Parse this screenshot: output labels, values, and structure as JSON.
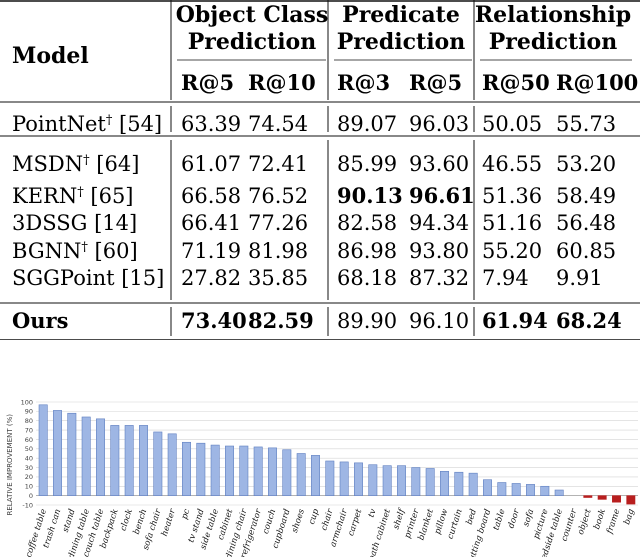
{
  "table": {
    "model_header": "Model",
    "groups": [
      {
        "lines": [
          "Object Class",
          "Prediction"
        ]
      },
      {
        "lines": [
          "Predicate",
          "Prediction"
        ]
      },
      {
        "lines": [
          "Relationship",
          "Prediction"
        ]
      }
    ],
    "metrics": [
      "R@5",
      "R@10",
      "R@3",
      "R@5",
      "R@50",
      "R@100"
    ],
    "rows": [
      {
        "model": "PointNet",
        "dagger": true,
        "ref": "[54]",
        "bold_model": false,
        "values": [
          "63.39",
          "74.54",
          "89.07",
          "96.03",
          "50.05",
          "55.73"
        ],
        "bold": [
          false,
          false,
          false,
          false,
          false,
          false
        ]
      },
      {
        "model": "MSDN",
        "dagger": true,
        "ref": "[64]",
        "bold_model": false,
        "values": [
          "61.07",
          "72.41",
          "85.99",
          "93.60",
          "46.55",
          "53.20"
        ],
        "bold": [
          false,
          false,
          false,
          false,
          false,
          false
        ]
      },
      {
        "model": "KERN",
        "dagger": true,
        "ref": "[65]",
        "bold_model": false,
        "values": [
          "66.58",
          "76.52",
          "90.13",
          "96.61",
          "51.36",
          "58.49"
        ],
        "bold": [
          false,
          false,
          true,
          true,
          false,
          false
        ]
      },
      {
        "model": "3DSSG",
        "dagger": false,
        "ref": "[14]",
        "bold_model": false,
        "values": [
          "66.41",
          "77.26",
          "82.58",
          "94.34",
          "51.16",
          "56.48"
        ],
        "bold": [
          false,
          false,
          false,
          false,
          false,
          false
        ]
      },
      {
        "model": "BGNN",
        "dagger": true,
        "ref": "[60]",
        "bold_model": false,
        "values": [
          "71.19",
          "81.98",
          "86.98",
          "93.80",
          "55.20",
          "60.85"
        ],
        "bold": [
          false,
          false,
          false,
          false,
          false,
          false
        ]
      },
      {
        "model": "SGGPoint",
        "dagger": false,
        "ref": "[15]",
        "bold_model": false,
        "values": [
          "27.82",
          "35.85",
          "68.18",
          "87.32",
          "7.94",
          "9.91"
        ],
        "bold": [
          false,
          false,
          false,
          false,
          false,
          false
        ]
      },
      {
        "model": "Ours",
        "dagger": false,
        "ref": "",
        "bold_model": true,
        "values": [
          "73.40",
          "82.59",
          "89.90",
          "96.10",
          "61.94",
          "68.24"
        ],
        "bold": [
          true,
          true,
          false,
          false,
          true,
          true
        ]
      }
    ]
  },
  "chart_data": {
    "type": "bar",
    "ylabel": "RELATIVE IMPROVEMENT (%)",
    "ylim": [
      -10,
      100
    ],
    "yticks": [
      -10,
      0,
      10,
      20,
      30,
      40,
      50,
      60,
      70,
      80,
      90,
      100
    ],
    "grid": true,
    "colors": {
      "positive": "#9eb6e4",
      "positive_edge": "#5f7fc0",
      "negative": "#b81e1e"
    },
    "categories": [
      "coffee table",
      "trash can",
      "stand",
      "dining table",
      "couch table",
      "backpack",
      "clock",
      "bench",
      "sofa chair",
      "heater",
      "pc",
      "tv stand",
      "side table",
      "cabinet",
      "dining chair",
      "refrigerator",
      "couch",
      "cupboard",
      "shoes",
      "cup",
      "chair",
      "armchair",
      "carpet",
      "tv",
      "bath cabinet",
      "shelf",
      "printer",
      "blanket",
      "pillow",
      "curtain",
      "bed",
      "cutting board",
      "table",
      "door",
      "sofa",
      "picture",
      "bedside table",
      "counter",
      "object",
      "book",
      "frame",
      "bag"
    ],
    "values": [
      97,
      91,
      88,
      84,
      82,
      75,
      75,
      75,
      68,
      66,
      57,
      56,
      54,
      53,
      53,
      52,
      51,
      49,
      45,
      43,
      37,
      36,
      35,
      33,
      32,
      32,
      30,
      29,
      26,
      25,
      24,
      17,
      14,
      13,
      12,
      10,
      6,
      0,
      -2,
      -4,
      -7,
      -9
    ]
  }
}
